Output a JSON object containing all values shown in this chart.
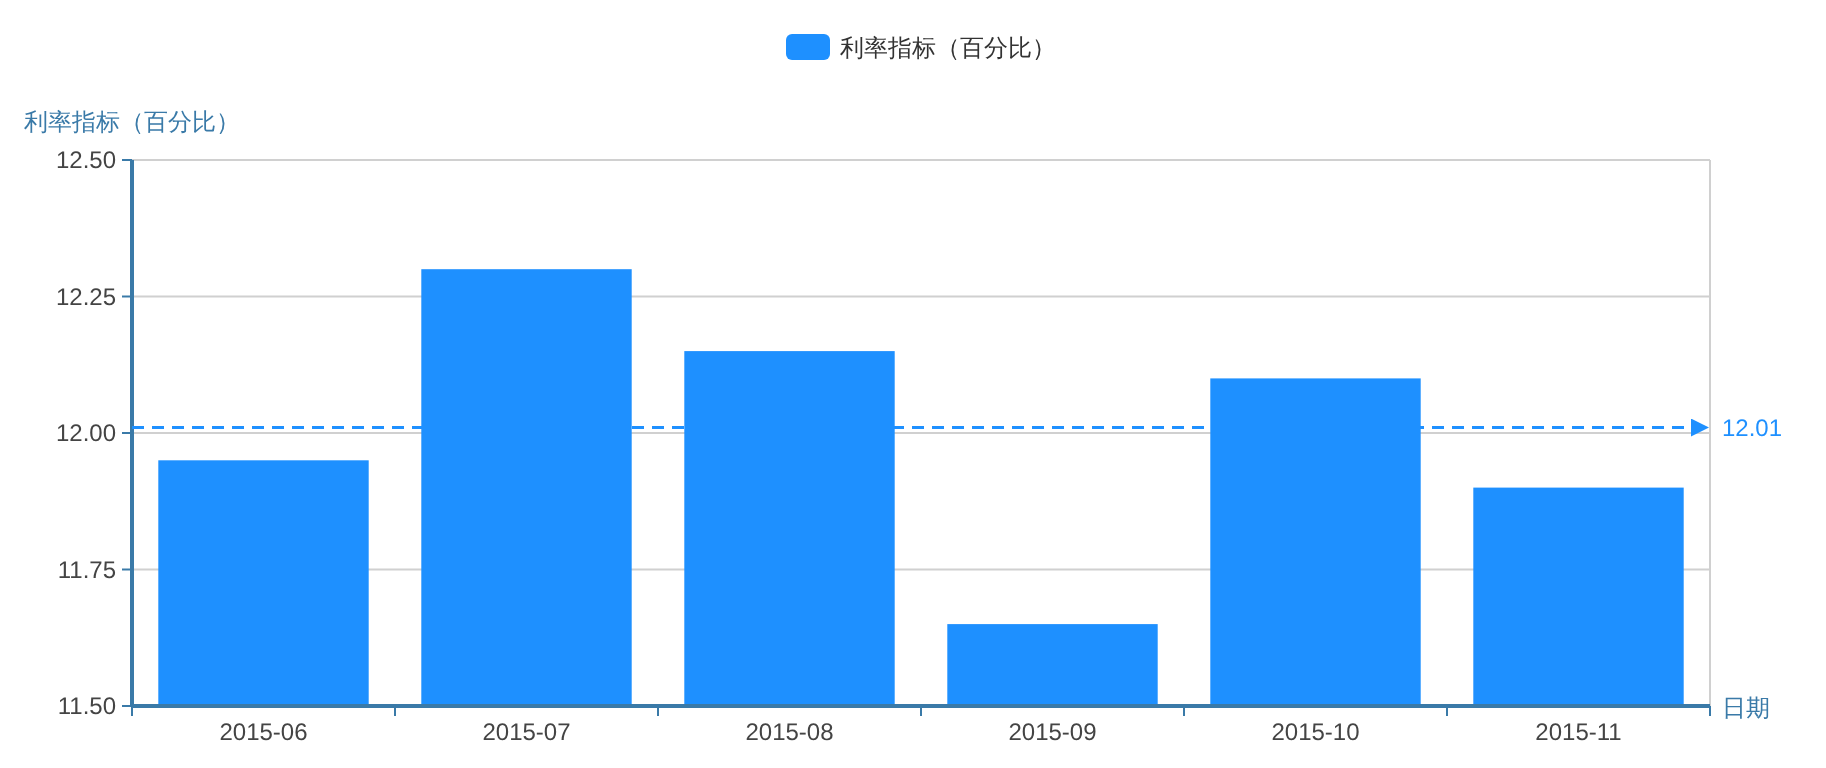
{
  "chart_data": {
    "type": "bar",
    "ylabel": "利率指标（百分比）",
    "xlabel": "日期",
    "categories": [
      "2015-06",
      "2015-07",
      "2015-08",
      "2015-09",
      "2015-10",
      "2015-11"
    ],
    "series": [
      {
        "name": "利率指标（百分比）",
        "color": "#1e90ff",
        "values": [
          11.95,
          12.3,
          12.15,
          11.65,
          12.1,
          11.9
        ]
      }
    ],
    "ylim": [
      11.5,
      12.5
    ],
    "yticks": [
      {
        "value": 11.5,
        "label": "11.50"
      },
      {
        "value": 11.75,
        "label": "11.75"
      },
      {
        "value": 12.0,
        "label": "12.00"
      },
      {
        "value": 12.25,
        "label": "12.25"
      },
      {
        "value": 12.5,
        "label": "12.50"
      }
    ],
    "ref_lines": [
      {
        "axis": "y",
        "value": 12.01,
        "label": "12.01",
        "color": "#1e90ff",
        "line_style": "dashed"
      }
    ],
    "grid": "y",
    "legend": "top"
  }
}
